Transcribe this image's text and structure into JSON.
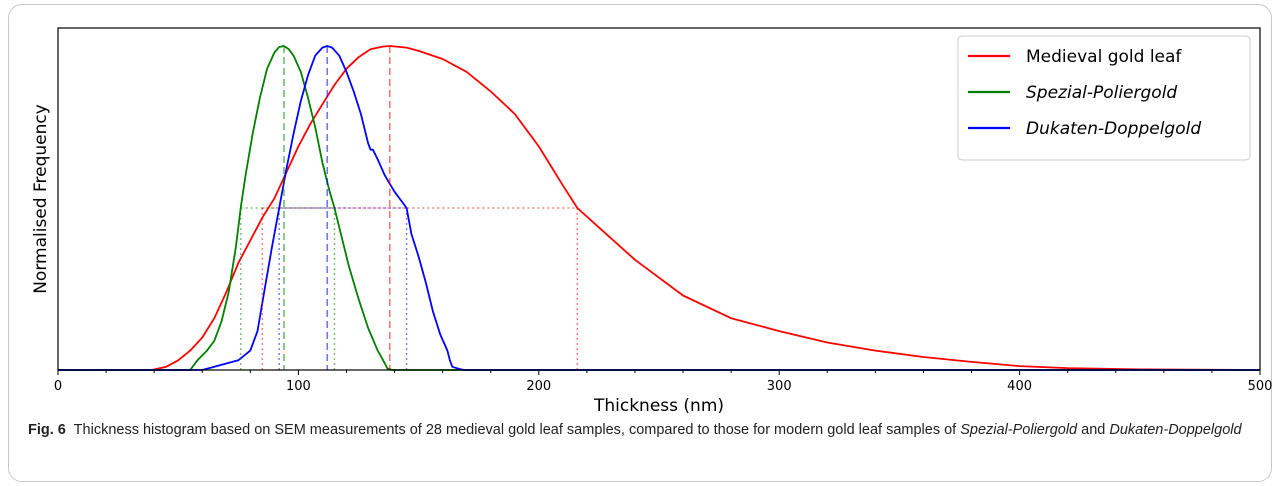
{
  "chart_data": {
    "type": "line",
    "title": "",
    "xlabel": "Thickness (nm)",
    "ylabel": "Normalised Frequency",
    "xlim": [
      0,
      500
    ],
    "ylim": [
      0,
      1
    ],
    "x_ticks": [
      0,
      100,
      200,
      300,
      400,
      500
    ],
    "x_tick_labels": [
      "0",
      "100",
      "200",
      "300",
      "400",
      "500"
    ],
    "y_ticks_shown": false,
    "grid": false,
    "legend_position": "top-right",
    "reference_level": 0.5,
    "series": [
      {
        "name": "Medieval gold leaf",
        "color": "#ff0000",
        "legend_italic": false,
        "peak": 138,
        "level_bounds": [
          85,
          216
        ],
        "x": [
          39,
          45,
          50,
          55,
          60,
          65,
          70,
          75,
          80,
          85,
          90,
          95,
          100,
          105,
          110,
          115,
          120,
          125,
          130,
          135,
          138,
          145,
          150,
          160,
          170,
          180,
          190,
          195,
          200,
          205,
          210,
          216,
          225,
          240,
          260,
          280,
          300,
          320,
          340,
          360,
          380,
          400,
          420,
          450,
          500
        ],
        "y": [
          0,
          0.01,
          0.03,
          0.06,
          0.1,
          0.16,
          0.24,
          0.33,
          0.4,
          0.47,
          0.53,
          0.61,
          0.69,
          0.76,
          0.82,
          0.88,
          0.93,
          0.965,
          0.99,
          0.998,
          1,
          0.995,
          0.985,
          0.96,
          0.92,
          0.86,
          0.79,
          0.74,
          0.69,
          0.63,
          0.57,
          0.5,
          0.44,
          0.34,
          0.23,
          0.16,
          0.12,
          0.085,
          0.06,
          0.04,
          0.025,
          0.012,
          0.006,
          0.002,
          0
        ]
      },
      {
        "name": "Spezial-Poliergold",
        "color": "#008000",
        "legend_italic": true,
        "peak": 94,
        "level_bounds": [
          76,
          115
        ],
        "x": [
          55,
          58,
          62,
          65,
          68,
          71,
          74,
          76,
          78,
          81,
          84,
          87,
          90,
          92,
          94,
          96,
          98,
          101,
          104,
          107,
          110,
          113,
          115,
          118,
          121,
          125,
          129,
          133,
          136,
          137,
          139
        ],
        "y": [
          0,
          0.03,
          0.06,
          0.09,
          0.15,
          0.24,
          0.38,
          0.5,
          0.6,
          0.73,
          0.84,
          0.93,
          0.98,
          0.997,
          1,
          0.99,
          0.97,
          0.92,
          0.84,
          0.75,
          0.64,
          0.55,
          0.5,
          0.41,
          0.32,
          0.22,
          0.13,
          0.06,
          0.02,
          0.005,
          0
        ]
      },
      {
        "name": "Dukaten-Doppelgold",
        "color": "#0000ff",
        "legend_italic": true,
        "peak": 112,
        "level_bounds": [
          92,
          145
        ],
        "x": [
          55,
          60,
          65,
          70,
          75,
          80,
          83,
          86,
          89,
          92,
          95,
          98,
          101,
          104,
          107,
          110,
          112,
          114,
          117,
          120,
          123,
          126,
          129,
          130,
          131,
          133,
          136,
          140,
          143,
          145,
          147,
          150,
          153,
          156,
          159,
          162,
          163,
          164,
          167,
          169
        ],
        "y": [
          0,
          0,
          0.01,
          0.02,
          0.03,
          0.06,
          0.12,
          0.25,
          0.38,
          0.5,
          0.62,
          0.73,
          0.83,
          0.91,
          0.97,
          0.995,
          1,
          0.995,
          0.97,
          0.92,
          0.86,
          0.79,
          0.7,
          0.68,
          0.68,
          0.65,
          0.6,
          0.55,
          0.52,
          0.5,
          0.42,
          0.35,
          0.27,
          0.18,
          0.11,
          0.06,
          0.03,
          0.01,
          0.003,
          0
        ]
      }
    ]
  },
  "caption": {
    "label": "Fig. 6",
    "text_before": "Thickness histogram based on SEM measurements of 28 medieval gold leaf samples, compared to those for modern gold leaf samples of ",
    "italic_1": "Spezial-Poliergold",
    "text_middle": " and ",
    "italic_2": "Dukaten-Doppelgold"
  }
}
